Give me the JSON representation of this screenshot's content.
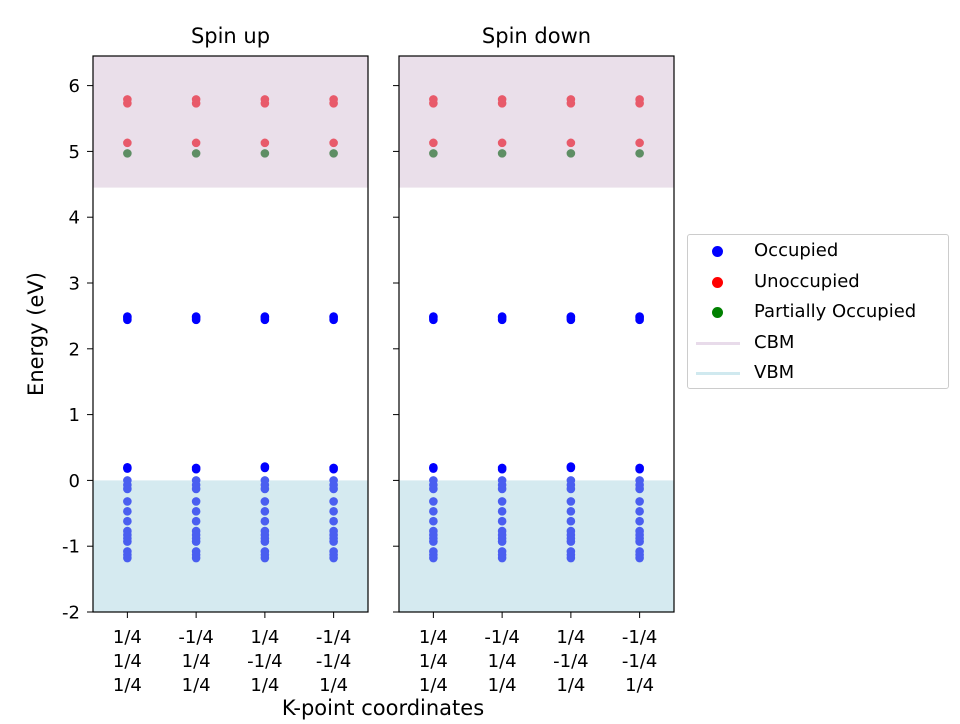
{
  "chart_data": {
    "type": "scatter",
    "xlabel": "K-point coordinates",
    "ylabel": "Energy (eV)",
    "ylim": [
      -2,
      6.45
    ],
    "yticks": [
      -2,
      -1,
      0,
      1,
      2,
      3,
      4,
      5,
      6
    ],
    "cbm": 4.45,
    "vbm": 0.0,
    "grid": false,
    "legend_position": "right",
    "kpoints": [
      [
        "1/4",
        "1/4",
        "1/4"
      ],
      [
        "-1/4",
        "1/4",
        "1/4"
      ],
      [
        "1/4",
        "-1/4",
        "1/4"
      ],
      [
        "-1/4",
        "-1/4",
        "1/4"
      ]
    ],
    "panels": [
      {
        "title": "Spin up",
        "series": [
          {
            "name": "Occupied",
            "color": "#0000ff",
            "energies": [
              [
                -1.18,
                -1.13,
                -1.08,
                -0.93,
                -0.88,
                -0.83,
                -0.77,
                -0.62,
                -0.47,
                -0.32,
                -0.13,
                -0.07,
                0.0,
                0.18,
                0.2,
                2.44,
                2.47,
                2.49
              ],
              [
                -1.18,
                -1.13,
                -1.08,
                -0.93,
                -0.88,
                -0.83,
                -0.77,
                -0.62,
                -0.47,
                -0.32,
                -0.13,
                -0.07,
                0.0,
                0.17,
                0.19,
                2.44,
                2.47,
                2.49
              ],
              [
                -1.18,
                -1.13,
                -1.08,
                -0.93,
                -0.88,
                -0.83,
                -0.77,
                -0.62,
                -0.47,
                -0.32,
                -0.13,
                -0.07,
                0.0,
                0.19,
                0.21,
                2.44,
                2.47,
                2.49
              ],
              [
                -1.18,
                -1.13,
                -1.08,
                -0.93,
                -0.88,
                -0.83,
                -0.77,
                -0.62,
                -0.47,
                -0.32,
                -0.13,
                -0.07,
                0.0,
                0.17,
                0.19,
                2.44,
                2.47,
                2.49
              ]
            ]
          },
          {
            "name": "Unoccupied",
            "color": "#ff0000",
            "energies": [
              [
                5.13,
                5.73,
                5.79
              ],
              [
                5.13,
                5.73,
                5.79
              ],
              [
                5.13,
                5.73,
                5.79
              ],
              [
                5.13,
                5.73,
                5.79
              ]
            ]
          },
          {
            "name": "Partially Occupied",
            "color": "#008000",
            "energies": [
              [
                4.97
              ],
              [
                4.97
              ],
              [
                4.97
              ],
              [
                4.97
              ]
            ]
          }
        ]
      },
      {
        "title": "Spin down",
        "series": [
          {
            "name": "Occupied",
            "color": "#0000ff",
            "energies": [
              [
                -1.18,
                -1.13,
                -1.08,
                -0.93,
                -0.88,
                -0.83,
                -0.77,
                -0.62,
                -0.47,
                -0.32,
                -0.13,
                -0.07,
                0.0,
                0.18,
                0.2,
                2.44,
                2.47,
                2.49
              ],
              [
                -1.18,
                -1.13,
                -1.08,
                -0.93,
                -0.88,
                -0.83,
                -0.77,
                -0.62,
                -0.47,
                -0.32,
                -0.13,
                -0.07,
                0.0,
                0.17,
                0.19,
                2.44,
                2.47,
                2.49
              ],
              [
                -1.18,
                -1.13,
                -1.08,
                -0.93,
                -0.88,
                -0.83,
                -0.77,
                -0.62,
                -0.47,
                -0.32,
                -0.13,
                -0.07,
                0.0,
                0.19,
                0.21,
                2.44,
                2.47,
                2.49
              ],
              [
                -1.18,
                -1.13,
                -1.08,
                -0.93,
                -0.88,
                -0.83,
                -0.77,
                -0.62,
                -0.47,
                -0.32,
                -0.13,
                -0.07,
                0.0,
                0.17,
                0.19,
                2.44,
                2.47,
                2.49
              ]
            ]
          },
          {
            "name": "Unoccupied",
            "color": "#ff0000",
            "energies": [
              [
                5.13,
                5.73,
                5.79
              ],
              [
                5.13,
                5.73,
                5.79
              ],
              [
                5.13,
                5.73,
                5.79
              ],
              [
                5.13,
                5.73,
                5.79
              ]
            ]
          },
          {
            "name": "Partially Occupied",
            "color": "#008000",
            "energies": [
              [
                4.97
              ],
              [
                4.97
              ],
              [
                4.97
              ],
              [
                4.97
              ]
            ]
          }
        ]
      }
    ],
    "legend": [
      {
        "label": "Occupied",
        "kind": "marker",
        "color": "#0000ff"
      },
      {
        "label": "Unoccupied",
        "kind": "marker",
        "color": "#ff0000"
      },
      {
        "label": "Partially Occupied",
        "kind": "marker",
        "color": "#008000"
      },
      {
        "label": "CBM",
        "kind": "line",
        "color": "#e8dbea"
      },
      {
        "label": "VBM",
        "kind": "line",
        "color": "#d0e9ef"
      }
    ],
    "band_colors": {
      "cbm_region": "#eadfea",
      "vbm_region": "#d5eaf0"
    }
  }
}
